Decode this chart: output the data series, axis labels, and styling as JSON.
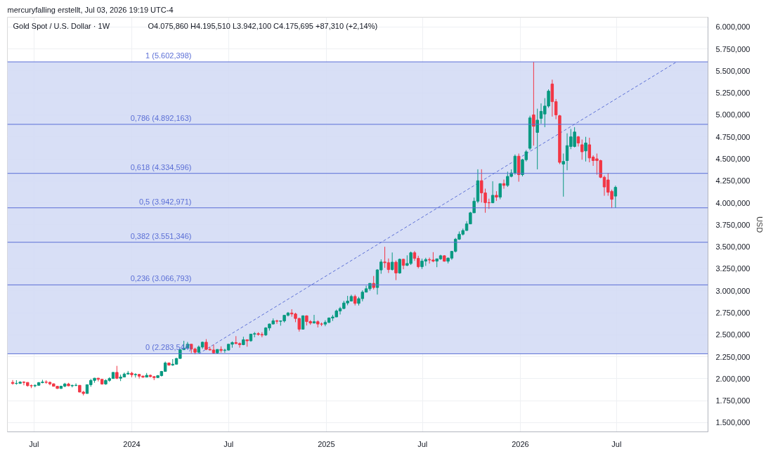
{
  "chart_data": {
    "type": "candlestick",
    "title": "Gold Spot / U.S. Dollar · 1W",
    "subtitle": "O4.075,860 H4.195,510 L3.942,100 C4.175,695 +87,310 (+2,14%)",
    "annotations": [
      "mercuryfalling erstellt, Jul 03, 2026 19:19 UTC-4"
    ],
    "ylabel": "USD",
    "xlim": [
      "2023-05-12",
      "2026-12-20"
    ],
    "xticks": [
      {
        "value": "2023-07-01",
        "label": "Jul"
      },
      {
        "value": "2024-01-01",
        "label": "2024"
      },
      {
        "value": "2024-07-01",
        "label": "Jul"
      },
      {
        "value": "2025-01-01",
        "label": "2025"
      },
      {
        "value": "2025-07-01",
        "label": "Jul"
      },
      {
        "value": "2026-01-01",
        "label": "2026"
      },
      {
        "value": "2026-07-01",
        "label": "Jul"
      }
    ],
    "ylim": [
      1396,
      6110
    ],
    "yticks": [
      {
        "value": 1500,
        "label": "1.500,000"
      },
      {
        "value": 1750,
        "label": "1.750,000"
      },
      {
        "value": 2000,
        "label": "2.000,000"
      },
      {
        "value": 2250,
        "label": "2.250,000"
      },
      {
        "value": 2500,
        "label": "2.500,000"
      },
      {
        "value": 2750,
        "label": "2.750,000"
      },
      {
        "value": 3000,
        "label": "3.000,000"
      },
      {
        "value": 3250,
        "label": "3.250,000"
      },
      {
        "value": 3500,
        "label": "3.500,000"
      },
      {
        "value": 3750,
        "label": "3.750,000"
      },
      {
        "value": 4000,
        "label": "4.000,000"
      },
      {
        "value": 4250,
        "label": "4.250,000"
      },
      {
        "value": 4500,
        "label": "4.500,000"
      },
      {
        "value": 4750,
        "label": "4.750,000"
      },
      {
        "value": 5000,
        "label": "5.000,000"
      },
      {
        "value": 5250,
        "label": "5.250,000"
      },
      {
        "value": 5500,
        "label": "5.500,000"
      },
      {
        "value": 5750,
        "label": "5.750,000"
      },
      {
        "value": 6000,
        "label": "6.000,000"
      }
    ],
    "grid": true,
    "bands": [
      {
        "axis": "y",
        "from": 2283.544,
        "to": 5602.398,
        "color": "#d1d9f4"
      }
    ],
    "ref_lines": [
      {
        "axis": "y",
        "value": 5602.398,
        "label": "1 (5.602,398)",
        "color": "#5b6fd6"
      },
      {
        "axis": "y",
        "value": 4892.163,
        "label": "0,786 (4.892,163)",
        "color": "#5b6fd6"
      },
      {
        "axis": "y",
        "value": 4334.596,
        "label": "0,618 (4.334,596)",
        "color": "#5b6fd6"
      },
      {
        "axis": "y",
        "value": 3942.971,
        "label": "0,5 (3.942,971)",
        "color": "#5b6fd6"
      },
      {
        "axis": "y",
        "value": 3551.346,
        "label": "0,382 (3.551,346)",
        "color": "#5b6fd6"
      },
      {
        "axis": "y",
        "value": 3066.793,
        "label": "0,236 (3.066,793)",
        "color": "#5b6fd6"
      },
      {
        "axis": "y",
        "value": 2283.544,
        "label": "0 (2.283,544)",
        "color": "#5b6fd6"
      }
    ],
    "series": [
      {
        "type": "line",
        "x": [
          "2024-05-06",
          "2026-10-22"
        ],
        "values": [
          2284,
          5602
        ],
        "color": "#5b6fd6",
        "line_style": "dashed"
      },
      {
        "x": [
          "2023-05-22",
          "2023-05-29",
          "2023-06-05",
          "2023-06-12",
          "2023-06-19",
          "2023-06-26",
          "2023-07-03",
          "2023-07-10",
          "2023-07-17",
          "2023-07-24",
          "2023-07-31",
          "2023-08-07",
          "2023-08-14",
          "2023-08-21",
          "2023-08-28",
          "2023-09-04",
          "2023-09-11",
          "2023-09-18",
          "2023-09-25",
          "2023-10-02",
          "2023-10-09",
          "2023-10-16",
          "2023-10-23",
          "2023-10-30",
          "2023-11-06",
          "2023-11-13",
          "2023-11-20",
          "2023-11-27",
          "2023-12-04",
          "2023-12-11",
          "2023-12-18",
          "2023-12-25",
          "2024-01-01",
          "2024-01-08",
          "2024-01-15",
          "2024-01-22",
          "2024-01-29",
          "2024-02-05",
          "2024-02-12",
          "2024-02-19",
          "2024-02-26",
          "2024-03-04",
          "2024-03-11",
          "2024-03-18",
          "2024-03-25",
          "2024-04-01",
          "2024-04-08",
          "2024-04-15",
          "2024-04-22",
          "2024-04-29",
          "2024-05-06",
          "2024-05-13",
          "2024-05-20",
          "2024-05-27",
          "2024-06-03",
          "2024-06-10",
          "2024-06-17",
          "2024-06-24",
          "2024-07-01",
          "2024-07-08",
          "2024-07-15",
          "2024-07-22",
          "2024-07-29",
          "2024-08-05",
          "2024-08-12",
          "2024-08-19",
          "2024-08-26",
          "2024-09-02",
          "2024-09-09",
          "2024-09-16",
          "2024-09-23",
          "2024-09-30",
          "2024-10-07",
          "2024-10-14",
          "2024-10-21",
          "2024-10-28",
          "2024-11-04",
          "2024-11-11",
          "2024-11-18",
          "2024-11-25",
          "2024-12-02",
          "2024-12-09",
          "2024-12-16",
          "2024-12-23",
          "2024-12-30",
          "2025-01-06",
          "2025-01-13",
          "2025-01-20",
          "2025-01-27",
          "2025-02-03",
          "2025-02-10",
          "2025-02-17",
          "2025-02-24",
          "2025-03-03",
          "2025-03-10",
          "2025-03-17",
          "2025-03-24",
          "2025-03-31",
          "2025-04-07",
          "2025-04-14",
          "2025-04-21",
          "2025-04-28",
          "2025-05-05",
          "2025-05-12",
          "2025-05-19",
          "2025-05-26",
          "2025-06-02",
          "2025-06-09",
          "2025-06-16",
          "2025-06-23",
          "2025-06-30",
          "2025-07-07",
          "2025-07-14",
          "2025-07-21",
          "2025-07-28",
          "2025-08-04",
          "2025-08-11",
          "2025-08-18",
          "2025-08-25",
          "2025-09-01",
          "2025-09-08",
          "2025-09-15",
          "2025-09-22",
          "2025-09-29",
          "2025-10-06",
          "2025-10-13",
          "2025-10-20",
          "2025-10-27",
          "2025-11-03",
          "2025-11-10",
          "2025-11-17",
          "2025-11-24",
          "2025-12-01",
          "2025-12-08",
          "2025-12-15",
          "2025-12-22",
          "2025-12-29",
          "2026-01-05",
          "2026-01-12",
          "2026-01-19",
          "2026-01-26",
          "2026-02-02",
          "2026-02-09",
          "2026-02-16",
          "2026-02-23",
          "2026-03-02",
          "2026-03-09",
          "2026-03-16",
          "2026-03-23",
          "2026-03-30",
          "2026-04-06",
          "2026-04-13",
          "2026-04-20",
          "2026-04-27",
          "2026-05-04",
          "2026-05-11",
          "2026-05-18",
          "2026-05-25",
          "2026-06-01",
          "2026-06-08",
          "2026-06-15",
          "2026-06-22",
          "2026-06-29"
        ],
        "ohlc": [
          [
            1958,
            1985,
            1932,
            1946
          ],
          [
            1946,
            1983,
            1932,
            1948
          ],
          [
            1948,
            1971,
            1940,
            1961
          ],
          [
            1961,
            1971,
            1925,
            1958
          ],
          [
            1958,
            1959,
            1910,
            1921
          ],
          [
            1921,
            1934,
            1893,
            1919
          ],
          [
            1919,
            1935,
            1902,
            1925
          ],
          [
            1925,
            1963,
            1922,
            1955
          ],
          [
            1955,
            1987,
            1948,
            1962
          ],
          [
            1962,
            1982,
            1942,
            1959
          ],
          [
            1959,
            1968,
            1925,
            1942
          ],
          [
            1942,
            1947,
            1911,
            1914
          ],
          [
            1914,
            1917,
            1885,
            1889
          ],
          [
            1889,
            1920,
            1885,
            1915
          ],
          [
            1915,
            1953,
            1903,
            1940
          ],
          [
            1940,
            1953,
            1915,
            1919
          ],
          [
            1919,
            1933,
            1901,
            1924
          ],
          [
            1924,
            1947,
            1914,
            1925
          ],
          [
            1925,
            1926,
            1846,
            1848
          ],
          [
            1848,
            1862,
            1810,
            1832
          ],
          [
            1832,
            1933,
            1831,
            1932
          ],
          [
            1932,
            1997,
            1908,
            1981
          ],
          [
            1981,
            2009,
            1954,
            2006
          ],
          [
            2006,
            2009,
            1969,
            1993
          ],
          [
            1993,
            1993,
            1932,
            1940
          ],
          [
            1940,
            1993,
            1931,
            1981
          ],
          [
            1981,
            2017,
            1965,
            2002
          ],
          [
            2002,
            2075,
            2001,
            2072
          ],
          [
            2072,
            2146,
            1995,
            2005
          ],
          [
            2005,
            2047,
            1973,
            2019
          ],
          [
            2019,
            2070,
            2016,
            2053
          ],
          [
            2053,
            2088,
            2047,
            2063
          ],
          [
            2063,
            2078,
            2016,
            2045
          ],
          [
            2045,
            2062,
            2013,
            2049
          ],
          [
            2049,
            2055,
            2002,
            2029
          ],
          [
            2029,
            2037,
            2010,
            2018
          ],
          [
            2018,
            2065,
            2016,
            2039
          ],
          [
            2039,
            2048,
            2015,
            2024
          ],
          [
            2024,
            2031,
            1984,
            2013
          ],
          [
            2013,
            2041,
            2011,
            2035
          ],
          [
            2035,
            2088,
            2025,
            2083
          ],
          [
            2083,
            2195,
            2081,
            2179
          ],
          [
            2179,
            2185,
            2147,
            2155
          ],
          [
            2155,
            2223,
            2146,
            2165
          ],
          [
            2165,
            2236,
            2163,
            2230
          ],
          [
            2230,
            2330,
            2228,
            2330
          ],
          [
            2330,
            2431,
            2326,
            2344
          ],
          [
            2344,
            2418,
            2341,
            2392
          ],
          [
            2392,
            2392,
            2291,
            2337
          ],
          [
            2337,
            2353,
            2277,
            2301
          ],
          [
            2301,
            2378,
            2291,
            2360
          ],
          [
            2360,
            2422,
            2340,
            2415
          ],
          [
            2415,
            2450,
            2325,
            2334
          ],
          [
            2334,
            2364,
            2322,
            2327
          ],
          [
            2327,
            2387,
            2286,
            2294
          ],
          [
            2294,
            2335,
            2287,
            2333
          ],
          [
            2333,
            2368,
            2296,
            2322
          ],
          [
            2322,
            2340,
            2294,
            2326
          ],
          [
            2326,
            2393,
            2319,
            2392
          ],
          [
            2392,
            2424,
            2353,
            2411
          ],
          [
            2411,
            2484,
            2393,
            2400
          ],
          [
            2400,
            2412,
            2353,
            2387
          ],
          [
            2387,
            2477,
            2381,
            2443
          ],
          [
            2443,
            2447,
            2364,
            2431
          ],
          [
            2431,
            2509,
            2421,
            2507
          ],
          [
            2507,
            2531,
            2471,
            2512
          ],
          [
            2512,
            2528,
            2490,
            2503
          ],
          [
            2503,
            2529,
            2471,
            2497
          ],
          [
            2497,
            2586,
            2486,
            2577
          ],
          [
            2577,
            2626,
            2547,
            2622
          ],
          [
            2622,
            2685,
            2618,
            2658
          ],
          [
            2658,
            2671,
            2624,
            2653
          ],
          [
            2653,
            2660,
            2603,
            2657
          ],
          [
            2657,
            2721,
            2639,
            2721
          ],
          [
            2721,
            2759,
            2708,
            2747
          ],
          [
            2747,
            2790,
            2705,
            2736
          ],
          [
            2736,
            2750,
            2643,
            2685
          ],
          [
            2685,
            2694,
            2536,
            2563
          ],
          [
            2563,
            2721,
            2560,
            2715
          ],
          [
            2715,
            2721,
            2605,
            2650
          ],
          [
            2650,
            2666,
            2613,
            2633
          ],
          [
            2633,
            2726,
            2628,
            2648
          ],
          [
            2648,
            2664,
            2583,
            2622
          ],
          [
            2622,
            2639,
            2598,
            2621
          ],
          [
            2621,
            2665,
            2597,
            2640
          ],
          [
            2640,
            2697,
            2633,
            2690
          ],
          [
            2690,
            2726,
            2657,
            2702
          ],
          [
            2702,
            2786,
            2702,
            2770
          ],
          [
            2770,
            2817,
            2730,
            2798
          ],
          [
            2798,
            2886,
            2790,
            2861
          ],
          [
            2861,
            2942,
            2835,
            2883
          ],
          [
            2883,
            2955,
            2880,
            2935
          ],
          [
            2935,
            2956,
            2833,
            2857
          ],
          [
            2857,
            2930,
            2832,
            2910
          ],
          [
            2910,
            3005,
            2880,
            2984
          ],
          [
            2984,
            3057,
            2982,
            3023
          ],
          [
            3023,
            3086,
            3000,
            3084
          ],
          [
            3084,
            3168,
            3015,
            3037
          ],
          [
            3037,
            3245,
            2957,
            3237
          ],
          [
            3237,
            3357,
            3193,
            3327
          ],
          [
            3327,
            3500,
            3261,
            3319
          ],
          [
            3319,
            3367,
            3202,
            3241
          ],
          [
            3241,
            3435,
            3230,
            3325
          ],
          [
            3325,
            3345,
            3121,
            3202
          ],
          [
            3202,
            3366,
            3193,
            3358
          ],
          [
            3358,
            3365,
            3245,
            3289
          ],
          [
            3289,
            3403,
            3280,
            3310
          ],
          [
            3310,
            3446,
            3293,
            3432
          ],
          [
            3432,
            3452,
            3340,
            3368
          ],
          [
            3368,
            3398,
            3255,
            3274
          ],
          [
            3274,
            3365,
            3248,
            3337
          ],
          [
            3337,
            3375,
            3283,
            3355
          ],
          [
            3355,
            3377,
            3309,
            3350
          ],
          [
            3350,
            3439,
            3324,
            3337
          ],
          [
            3337,
            3363,
            3268,
            3363
          ],
          [
            3363,
            3409,
            3351,
            3398
          ],
          [
            3398,
            3404,
            3331,
            3336
          ],
          [
            3336,
            3379,
            3311,
            3371
          ],
          [
            3371,
            3453,
            3351,
            3448
          ],
          [
            3448,
            3600,
            3436,
            3586
          ],
          [
            3586,
            3674,
            3578,
            3643
          ],
          [
            3643,
            3707,
            3628,
            3685
          ],
          [
            3685,
            3791,
            3683,
            3760
          ],
          [
            3760,
            3897,
            3760,
            3886
          ],
          [
            3886,
            4059,
            3885,
            4018
          ],
          [
            4018,
            4381,
            3996,
            4251
          ],
          [
            4251,
            4381,
            4004,
            4113
          ],
          [
            4113,
            4161,
            3887,
            4002
          ],
          [
            4002,
            4047,
            3931,
            4000
          ],
          [
            4000,
            4245,
            3996,
            4085
          ],
          [
            4085,
            4132,
            4022,
            4065
          ],
          [
            4065,
            4218,
            4040,
            4218
          ],
          [
            4218,
            4264,
            4160,
            4198
          ],
          [
            4198,
            4354,
            4180,
            4300
          ],
          [
            4300,
            4380,
            4290,
            4340
          ],
          [
            4340,
            4550,
            4320,
            4530
          ],
          [
            4530,
            4560,
            4240,
            4320
          ],
          [
            4320,
            4500,
            4300,
            4490
          ],
          [
            4490,
            4600,
            4470,
            4580
          ],
          [
            4620,
            4990,
            4600,
            4965
          ],
          [
            5000,
            5602,
            4650,
            4870
          ],
          [
            4800,
            5070,
            4380,
            4940
          ],
          [
            4960,
            5130,
            4900,
            5040
          ],
          [
            5010,
            5190,
            4860,
            5100
          ],
          [
            5100,
            5290,
            5080,
            5270
          ],
          [
            5350,
            5400,
            4980,
            5150
          ],
          [
            5150,
            5180,
            4950,
            5000
          ],
          [
            4990,
            5000,
            4440,
            4460
          ],
          [
            4440,
            4560,
            4070,
            4470
          ],
          [
            4480,
            4790,
            4370,
            4650
          ],
          [
            4640,
            4840,
            4610,
            4750
          ],
          [
            4640,
            4860,
            4630,
            4805
          ],
          [
            4750,
            4760,
            4640,
            4680
          ],
          [
            4660,
            4720,
            4490,
            4580
          ],
          [
            4590,
            4750,
            4470,
            4680
          ],
          [
            4660,
            4740,
            4460,
            4510
          ],
          [
            4520,
            4540,
            4420,
            4480
          ],
          [
            4500,
            4560,
            4320,
            4480
          ],
          [
            4480,
            4490,
            4280,
            4290
          ],
          [
            4290,
            4310,
            4080,
            4180
          ],
          [
            4260,
            4340,
            4080,
            4120
          ],
          [
            4130,
            4150,
            3940,
            4040
          ],
          [
            4075.86,
            4195.51,
            3942.1,
            4175.695
          ]
        ],
        "colors": [
          "#f23645",
          "#089981",
          "#089981",
          "#f23645",
          "#f23645",
          "#f23645",
          "#089981",
          "#089981",
          "#089981",
          "#f23645",
          "#f23645",
          "#f23645",
          "#f23645",
          "#089981",
          "#089981",
          "#f23645",
          "#089981",
          "#089981",
          "#f23645",
          "#f23645",
          "#089981",
          "#089981",
          "#089981",
          "#f23645",
          "#f23645",
          "#089981",
          "#089981",
          "#089981",
          "#f23645",
          "#089981",
          "#089981",
          "#089981",
          "#f23645",
          "#089981",
          "#f23645",
          "#f23645",
          "#089981",
          "#f23645",
          "#f23645",
          "#089981",
          "#089981",
          "#089981",
          "#f23645",
          "#089981",
          "#089981",
          "#089981",
          "#089981",
          "#089981",
          "#f23645",
          "#f23645",
          "#089981",
          "#089981",
          "#f23645",
          "#f23645",
          "#f23645",
          "#089981",
          "#f23645",
          "#089981",
          "#089981",
          "#089981",
          "#f23645",
          "#f23645",
          "#089981",
          "#f23645",
          "#089981",
          "#089981",
          "#f23645",
          "#f23645",
          "#089981",
          "#089981",
          "#089981",
          "#f23645",
          "#089981",
          "#089981",
          "#089981",
          "#f23645",
          "#f23645",
          "#f23645",
          "#089981",
          "#f23645",
          "#f23645",
          "#089981",
          "#f23645",
          "#f23645",
          "#089981",
          "#089981",
          "#089981",
          "#089981",
          "#089981",
          "#089981",
          "#089981",
          "#089981",
          "#f23645",
          "#089981",
          "#089981",
          "#089981",
          "#089981",
          "#f23645",
          "#089981",
          "#089981",
          "#f23645",
          "#f23645",
          "#089981",
          "#f23645",
          "#089981",
          "#f23645",
          "#089981",
          "#089981",
          "#f23645",
          "#f23645",
          "#089981",
          "#089981",
          "#f23645",
          "#f23645",
          "#089981",
          "#089981",
          "#f23645",
          "#089981",
          "#089981",
          "#089981",
          "#089981",
          "#089981",
          "#089981",
          "#089981",
          "#089981",
          "#089981",
          "#f23645",
          "#f23645",
          "#f23645",
          "#089981",
          "#f23645",
          "#089981",
          "#f23645",
          "#089981",
          "#089981",
          "#089981",
          "#f23645",
          "#089981",
          "#089981",
          "#089981",
          "#f23645",
          "#089981",
          "#089981",
          "#089981",
          "#089981",
          "#f23645",
          "#f23645",
          "#f23645",
          "#089981",
          "#089981",
          "#089981",
          "#089981",
          "#f23645",
          "#f23645",
          "#089981",
          "#f23645",
          "#f23645",
          "#f23645",
          "#f23645",
          "#f23645",
          "#f23645",
          "#f23645",
          "#089981"
        ]
      }
    ]
  }
}
